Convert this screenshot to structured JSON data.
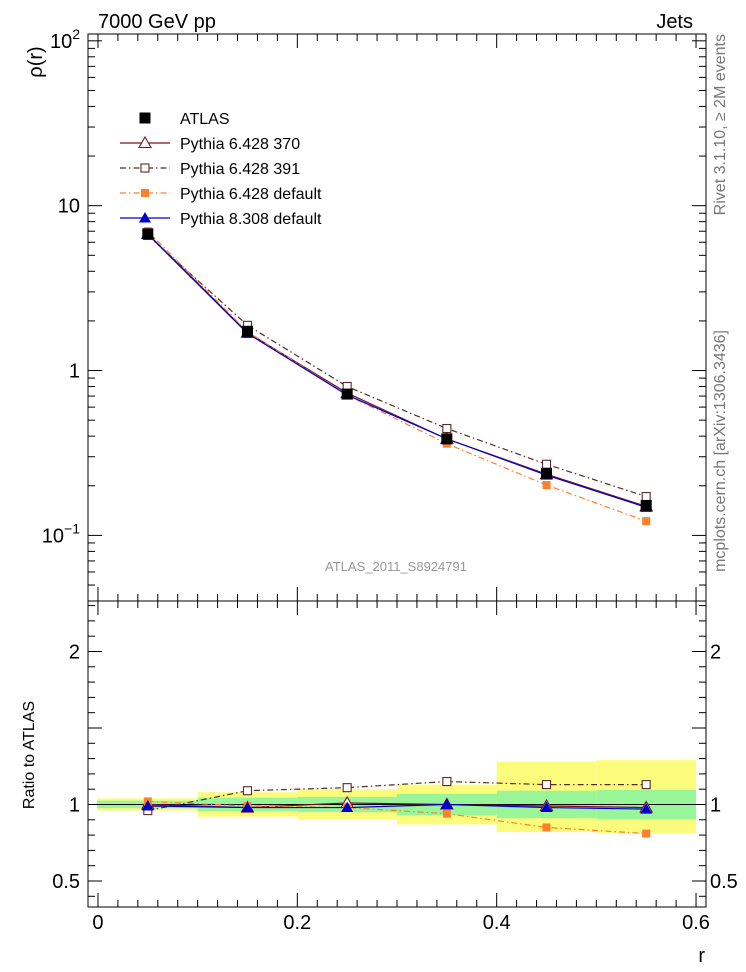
{
  "header": {
    "left": "7000 GeV pp",
    "right": "Jets"
  },
  "side_text": {
    "rivet": "Rivet 3.1.10, ≥ 2M events",
    "mcplots": "mcplots.cern.ch [arXiv:1306.3436]"
  },
  "watermark": "ATLAS_2011_S8924791",
  "colors": {
    "atlas": "#000000",
    "py370": "#7a1024",
    "py391": "#5a2a2a",
    "pydef": "#ff7f2a",
    "py8": "#0000cc",
    "band_inner": "#98f598",
    "band_outer": "#fcfc7c"
  },
  "chart_data": [
    {
      "type": "line",
      "panel": "main",
      "ylabel": "ρ(r)",
      "yscale": "log",
      "ylim": [
        0.04,
        110
      ],
      "xlim": [
        -0.01,
        0.61
      ],
      "y_ticks": [
        {
          "value": 0.1,
          "base": "10",
          "exp": "−1"
        },
        {
          "value": 1,
          "label": "1"
        },
        {
          "value": 10,
          "label": "10"
        },
        {
          "value": 100,
          "base": "10",
          "exp": "2"
        }
      ],
      "x": [
        0.05,
        0.15,
        0.25,
        0.35,
        0.45,
        0.55
      ],
      "legend_position": "top-left",
      "series": [
        {
          "name": "ATLAS",
          "key": "atlas",
          "marker": "square-filled",
          "line": "none",
          "values": [
            6.75,
            1.73,
            0.72,
            0.385,
            0.238,
            0.152
          ]
        },
        {
          "name": "Pythia 6.428 370",
          "key": "py370",
          "marker": "triangle-open",
          "line": "solid",
          "values": [
            6.75,
            1.7,
            0.73,
            0.385,
            0.235,
            0.15
          ]
        },
        {
          "name": "Pythia 6.428 391",
          "key": "py391",
          "marker": "square-open",
          "line": "dashdot",
          "values": [
            6.6,
            1.88,
            0.8,
            0.445,
            0.27,
            0.172
          ]
        },
        {
          "name": "Pythia 6.428 default",
          "key": "pydef",
          "marker": "square-filled-small",
          "line": "dashdot",
          "values": [
            7.0,
            1.72,
            0.71,
            0.36,
            0.202,
            0.122
          ]
        },
        {
          "name": "Pythia 8.308 default",
          "key": "py8",
          "marker": "triangle-filled",
          "line": "solid",
          "values": [
            6.7,
            1.68,
            0.71,
            0.385,
            0.232,
            0.148
          ]
        }
      ]
    },
    {
      "type": "line",
      "panel": "ratio",
      "ylabel": "Ratio to ATLAS",
      "xlabel": "r",
      "ylim": [
        0.33,
        2.33
      ],
      "xlim": [
        -0.01,
        0.61
      ],
      "y_ticks": [
        0.5,
        1,
        2
      ],
      "x_ticks": [
        0,
        0.2,
        0.4,
        0.6
      ],
      "x_tick_labels": [
        "0",
        "0.2",
        "0.4",
        "0.6"
      ],
      "bands": {
        "bins": [
          [
            -0.001,
            0.1
          ],
          [
            0.1,
            0.2
          ],
          [
            0.2,
            0.3
          ],
          [
            0.3,
            0.4
          ],
          [
            0.4,
            0.5
          ],
          [
            0.5,
            0.6
          ]
        ],
        "inner": [
          [
            0.975,
            1.025
          ],
          [
            0.955,
            1.045
          ],
          [
            0.95,
            1.05
          ],
          [
            0.93,
            1.07
          ],
          [
            0.91,
            1.09
          ],
          [
            0.905,
            1.095
          ]
        ],
        "outer": [
          [
            0.96,
            1.04
          ],
          [
            0.92,
            1.08
          ],
          [
            0.9,
            1.1
          ],
          [
            0.87,
            1.13
          ],
          [
            0.82,
            1.28
          ],
          [
            0.81,
            1.29
          ]
        ]
      },
      "x": [
        0.05,
        0.15,
        0.25,
        0.35,
        0.45,
        0.55
      ],
      "series": [
        {
          "name": "Pythia 6.428 370",
          "key": "py370",
          "marker": "triangle-open",
          "line": "solid",
          "values": [
            1.0,
            0.98,
            1.01,
            1.0,
            0.99,
            0.98
          ]
        },
        {
          "name": "Pythia 6.428 391",
          "key": "py391",
          "marker": "square-open",
          "line": "dashdot",
          "values": [
            0.96,
            1.09,
            1.11,
            1.15,
            1.13,
            1.13
          ]
        },
        {
          "name": "Pythia 6.428 default",
          "key": "pydef",
          "marker": "square-filled-small",
          "line": "dashdot",
          "values": [
            1.02,
            0.99,
            0.98,
            0.94,
            0.85,
            0.81
          ]
        },
        {
          "name": "Pythia 8.308 default",
          "key": "py8",
          "marker": "triangle-filled",
          "line": "solid",
          "values": [
            0.99,
            0.98,
            0.98,
            1.0,
            0.98,
            0.97
          ]
        }
      ]
    }
  ]
}
